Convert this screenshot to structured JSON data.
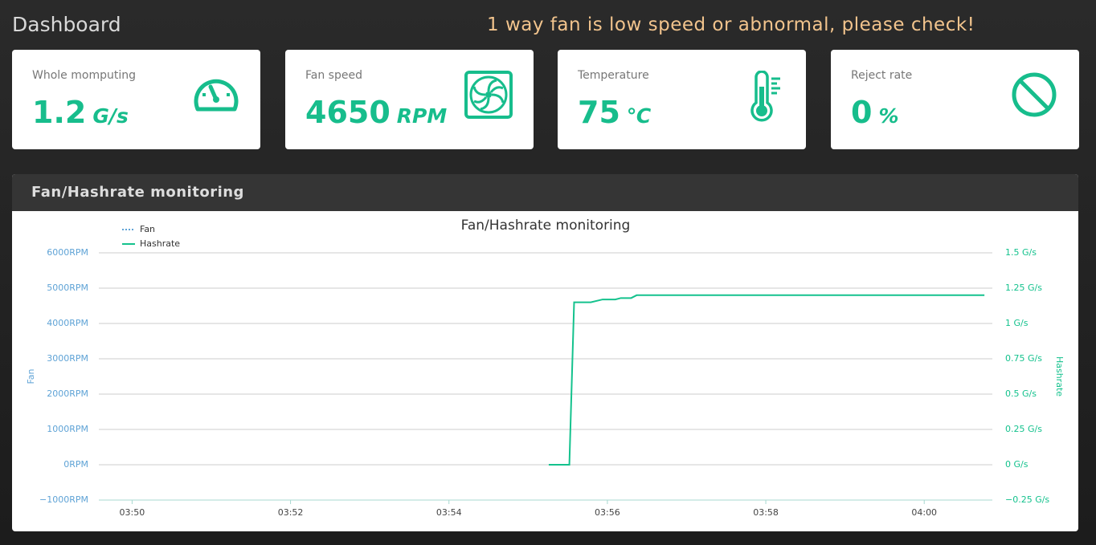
{
  "header": {
    "title": "Dashboard",
    "alert": "1 way fan is low speed or abnormal, please check!"
  },
  "cards": [
    {
      "label": "Whole momputing",
      "value": 1.2,
      "unit": "G/s"
    },
    {
      "label": "Fan speed",
      "value": 4650,
      "unit": "RPM"
    },
    {
      "label": "Temperature",
      "value": 75,
      "unit": "℃"
    },
    {
      "label": "Reject rate",
      "value": 0,
      "unit": "%"
    }
  ],
  "panel": {
    "title": "Fan/Hashrate monitoring"
  },
  "chart_data": {
    "type": "line",
    "title": "Fan/Hashrate monitoring",
    "x": [
      235.26,
      235.52,
      235.58,
      235.79,
      235.94,
      236.1,
      236.17,
      236.3,
      236.37,
      240.76
    ],
    "xlim": [
      229.58,
      240.86
    ],
    "xticks": [
      {
        "value": 230,
        "label": "03:50"
      },
      {
        "value": 232,
        "label": "03:52"
      },
      {
        "value": 234,
        "label": "03:54"
      },
      {
        "value": 236,
        "label": "03:56"
      },
      {
        "value": 238,
        "label": "03:58"
      },
      {
        "value": 240,
        "label": "04:00"
      }
    ],
    "ylabel": "Fan",
    "y2label": "Hashrate",
    "ylim": [
      -1000,
      6000
    ],
    "yticks": [
      {
        "value": -1000,
        "label": "−1000RPM"
      },
      {
        "value": 0,
        "label": "0RPM"
      },
      {
        "value": 1000,
        "label": "1000RPM"
      },
      {
        "value": 2000,
        "label": "2000RPM"
      },
      {
        "value": 3000,
        "label": "3000RPM"
      },
      {
        "value": 4000,
        "label": "4000RPM"
      },
      {
        "value": 5000,
        "label": "5000RPM"
      },
      {
        "value": 6000,
        "label": "6000RPM"
      }
    ],
    "y2lim": [
      -0.25,
      1.5
    ],
    "y2ticks": [
      {
        "value": -0.25,
        "label": "−0.25 G/s"
      },
      {
        "value": 0,
        "label": "0 G/s"
      },
      {
        "value": 0.25,
        "label": "0.25 G/s"
      },
      {
        "value": 0.5,
        "label": "0.5 G/s"
      },
      {
        "value": 0.75,
        "label": "0.75 G/s"
      },
      {
        "value": 1,
        "label": "1 G/s"
      },
      {
        "value": 1.25,
        "label": "1.25 G/s"
      },
      {
        "value": 1.5,
        "label": "1.5 G/s"
      }
    ],
    "grid": true,
    "series": [
      {
        "name": "Fan",
        "color": "#5fa3d6",
        "dash": "dotted",
        "values": [
          null,
          null,
          null,
          null,
          null,
          null,
          null,
          null,
          null,
          null
        ]
      },
      {
        "name": "Hashrate",
        "color": "#14c28d",
        "axis": "y2",
        "values": [
          0,
          0,
          1.15,
          1.15,
          1.17,
          1.17,
          1.18,
          1.18,
          1.2,
          1.2
        ]
      }
    ]
  }
}
